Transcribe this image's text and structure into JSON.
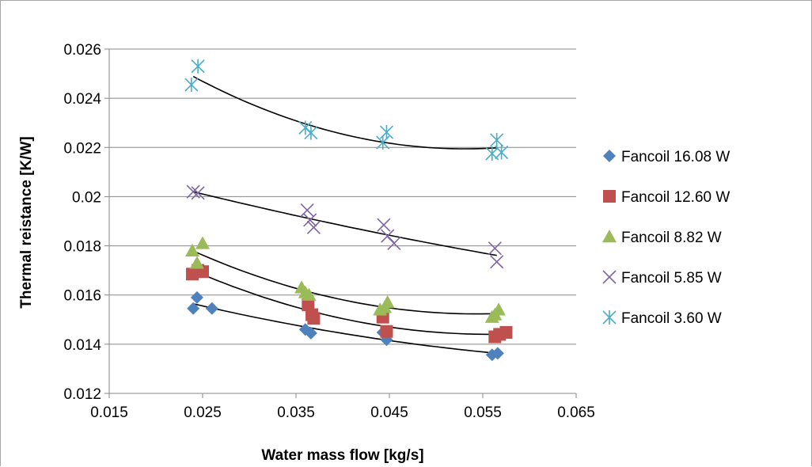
{
  "chart_data": {
    "type": "scatter",
    "title": "",
    "xlabel": "Water mass flow [kg/s]",
    "ylabel": "Thermal reistance [K/W]",
    "xlim": [
      0.015,
      0.065
    ],
    "ylim": [
      0.012,
      0.026
    ],
    "x_ticks": [
      "0.015",
      "0.025",
      "0.035",
      "0.045",
      "0.055",
      "0.065"
    ],
    "y_ticks": [
      "0.012",
      "0.014",
      "0.016",
      "0.018",
      "0.02",
      "0.022",
      "0.024",
      "0.026"
    ],
    "grid": "horizontal major gridlines",
    "legend_position": "right",
    "trendlines": "polynomial (order 2) per series",
    "series": [
      {
        "name": "Fancoil 16.08 W",
        "marker": "diamond",
        "color": "#4f81bd",
        "points": [
          [
            0.024,
            0.01545
          ],
          [
            0.0244,
            0.0159
          ],
          [
            0.026,
            0.01545
          ],
          [
            0.036,
            0.0146
          ],
          [
            0.0366,
            0.01445
          ],
          [
            0.0443,
            0.01448
          ],
          [
            0.0447,
            0.01418
          ],
          [
            0.056,
            0.01357
          ],
          [
            0.0566,
            0.01363
          ]
        ],
        "trend": [
          [
            0.024,
            0.01565
          ],
          [
            0.0565,
            0.01358
          ]
        ]
      },
      {
        "name": "Fancoil 12.60 W",
        "marker": "square",
        "color": "#c0504d",
        "points": [
          [
            0.0239,
            0.01685
          ],
          [
            0.0245,
            0.017
          ],
          [
            0.025,
            0.01695
          ],
          [
            0.0363,
            0.0156
          ],
          [
            0.0367,
            0.0152
          ],
          [
            0.0369,
            0.01505
          ],
          [
            0.0443,
            0.0151
          ],
          [
            0.0447,
            0.01452
          ],
          [
            0.0563,
            0.0143
          ],
          [
            0.0568,
            0.0144
          ],
          [
            0.0575,
            0.01448
          ]
        ],
        "trend": [
          [
            0.024,
            0.01695
          ],
          [
            0.0575,
            0.01445
          ]
        ]
      },
      {
        "name": "Fancoil 8.82 W",
        "marker": "triangle",
        "color": "#9bbb59",
        "points": [
          [
            0.0239,
            0.0178
          ],
          [
            0.0244,
            0.0173
          ],
          [
            0.025,
            0.0181
          ],
          [
            0.0356,
            0.0163
          ],
          [
            0.036,
            0.0161
          ],
          [
            0.0364,
            0.016
          ],
          [
            0.044,
            0.0154
          ],
          [
            0.0445,
            0.0155
          ],
          [
            0.0448,
            0.0157
          ],
          [
            0.056,
            0.0151
          ],
          [
            0.0563,
            0.0152
          ],
          [
            0.0567,
            0.0154
          ]
        ],
        "trend": [
          [
            0.024,
            0.0178
          ],
          [
            0.0565,
            0.0153
          ]
        ]
      },
      {
        "name": "Fancoil 5.85 W",
        "marker": "x",
        "color": "#8064a2",
        "points": [
          [
            0.024,
            0.0202
          ],
          [
            0.0245,
            0.02015
          ],
          [
            0.0362,
            0.01945
          ],
          [
            0.0365,
            0.01905
          ],
          [
            0.0369,
            0.01875
          ],
          [
            0.0444,
            0.01885
          ],
          [
            0.0448,
            0.0184
          ],
          [
            0.0455,
            0.0181
          ],
          [
            0.0563,
            0.0179
          ],
          [
            0.0565,
            0.01735
          ]
        ],
        "trend": [
          [
            0.024,
            0.0202
          ],
          [
            0.0565,
            0.0176
          ]
        ]
      },
      {
        "name": "Fancoil 3.60 W",
        "marker": "asterisk",
        "color": "#4bacc6",
        "points": [
          [
            0.0238,
            0.02455
          ],
          [
            0.0245,
            0.0253
          ],
          [
            0.036,
            0.0228
          ],
          [
            0.0366,
            0.0226
          ],
          [
            0.0443,
            0.0222
          ],
          [
            0.0447,
            0.02262
          ],
          [
            0.056,
            0.02175
          ],
          [
            0.0565,
            0.0223
          ],
          [
            0.057,
            0.0218
          ]
        ],
        "trend": [
          [
            0.024,
            0.02505
          ],
          [
            0.0565,
            0.02202
          ]
        ]
      }
    ]
  }
}
